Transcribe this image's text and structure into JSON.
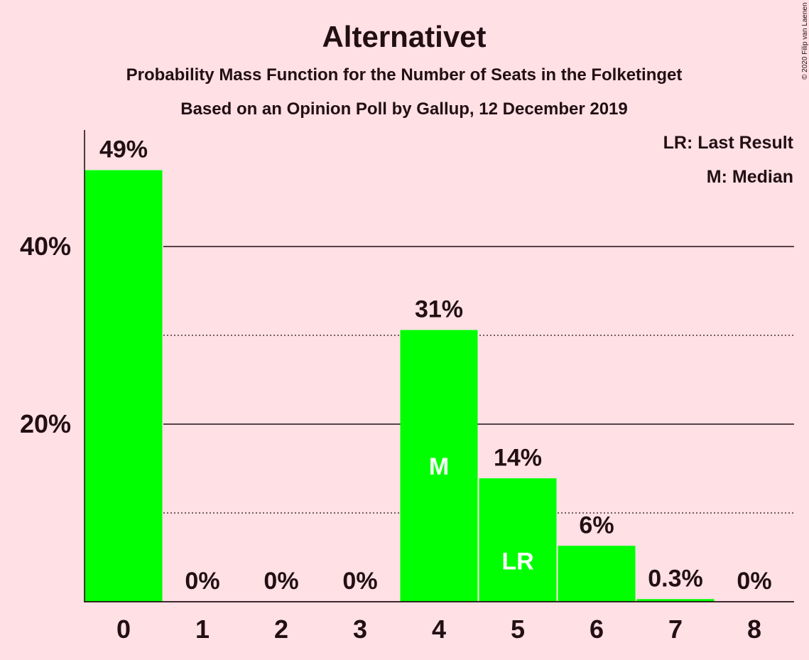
{
  "chart_data": {
    "type": "bar",
    "title": "Alternativet",
    "subtitle": "Probability Mass Function for the Number of Seats in the Folketinget",
    "subtitle2": "Based on an Opinion Poll by Gallup, 12 December 2019",
    "copyright": "© 2020 Filip van Laenen",
    "categories": [
      "0",
      "1",
      "2",
      "3",
      "4",
      "5",
      "6",
      "7",
      "8"
    ],
    "values": [
      48.6,
      0,
      0,
      0,
      30.6,
      13.9,
      6.3,
      0.3,
      0
    ],
    "value_labels": [
      "49%",
      "0%",
      "0%",
      "0%",
      "31%",
      "14%",
      "6%",
      "0.3%",
      "0%"
    ],
    "bar_markers": [
      "",
      "",
      "",
      "",
      "M",
      "LR",
      "",
      "",
      ""
    ],
    "y_ticks": [
      {
        "value": 20,
        "label": "20%"
      },
      {
        "value": 40,
        "label": "40%"
      }
    ],
    "dotted_gridlines": [
      10,
      30
    ],
    "ylim": [
      0,
      53
    ],
    "legend": [
      "LR: Last Result",
      "M: Median"
    ],
    "legend_position": "top-right",
    "bar_color": "#00ff00",
    "background_color": "#ffe0e5",
    "text_color": "#220f14"
  }
}
